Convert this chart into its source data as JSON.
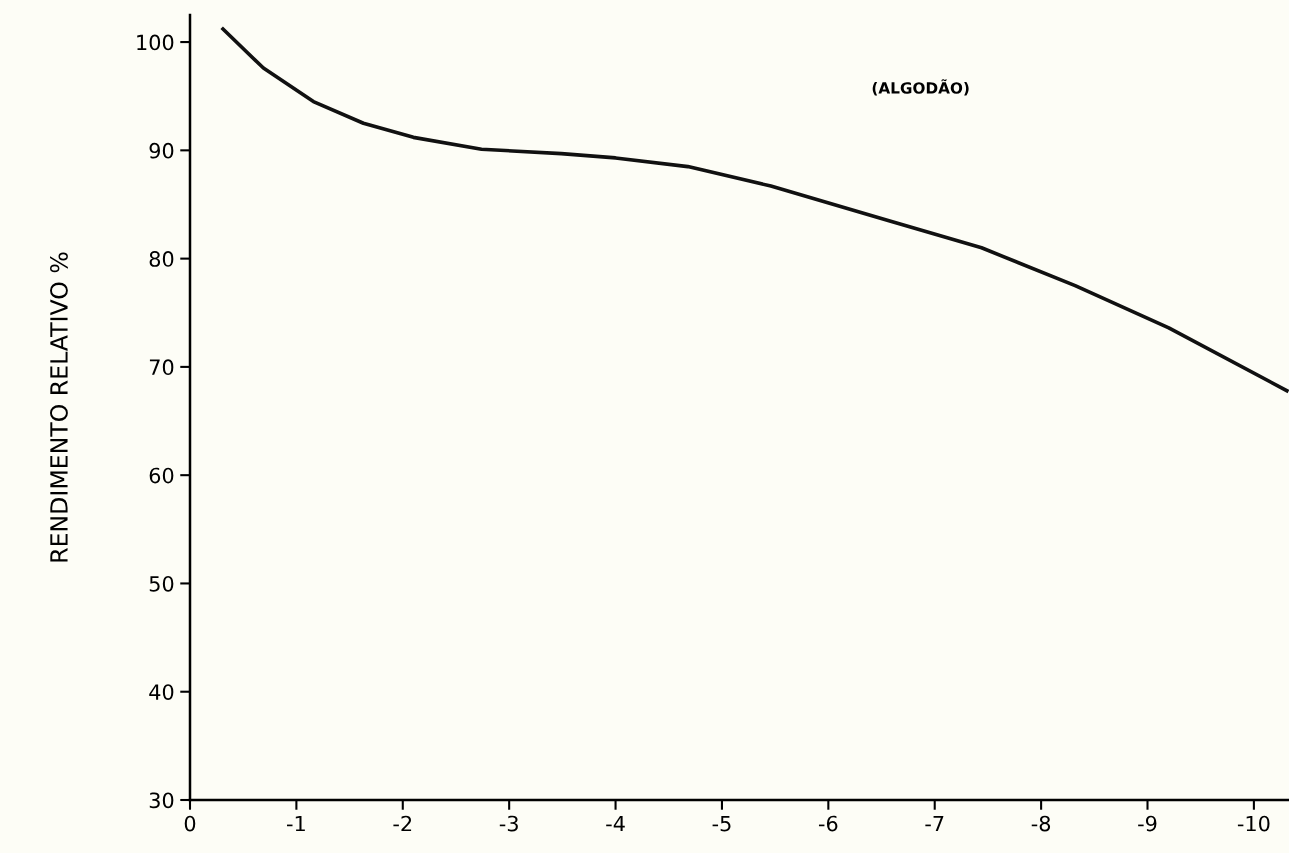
{
  "chart_data": {
    "type": "line",
    "ylabel": "RENDIMENTO RELATIVO %",
    "annotations": [
      "(ALGODÃO)"
    ],
    "x": [
      -0.31,
      -0.69,
      -1.16,
      -1.63,
      -2.1,
      -2.74,
      -3.49,
      -4.0,
      -4.68,
      -5.46,
      -6.57,
      -7.44,
      -8.32,
      -9.2,
      -10.31
    ],
    "series": [
      {
        "color": "#111111",
        "values": [
          101.2,
          97.6,
          94.5,
          92.5,
          91.2,
          90.1,
          89.7,
          89.3,
          88.5,
          86.7,
          83.5,
          81.0,
          77.5,
          73.6,
          67.8
        ]
      }
    ],
    "xlim": [
      0,
      -10.33
    ],
    "ylim": [
      30,
      102.5
    ],
    "xticks": [
      0,
      -1,
      -2,
      -3,
      -4,
      -5,
      -6,
      -7,
      -8,
      -9,
      -10
    ],
    "yticks": [
      30,
      40,
      50,
      60,
      70,
      80,
      90,
      100
    ],
    "grid": false,
    "marker": "none",
    "line_style": "solid",
    "legend": false
  }
}
